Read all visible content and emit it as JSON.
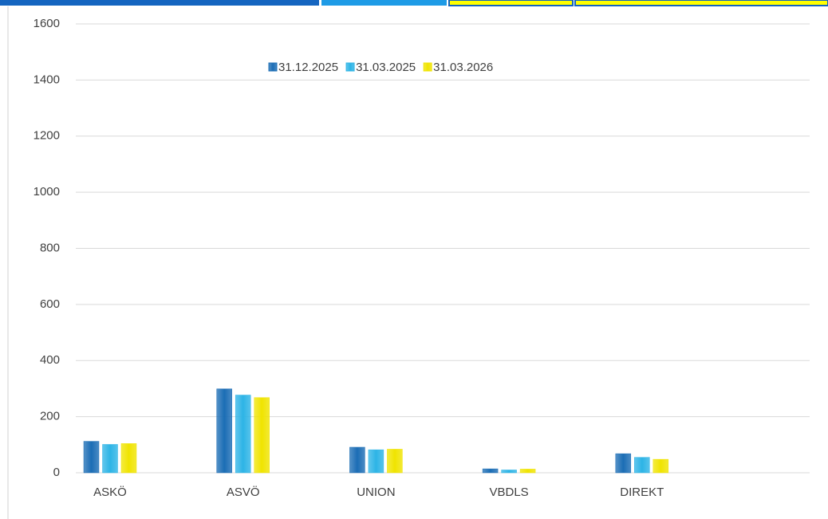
{
  "chart_data": {
    "type": "bar",
    "categories": [
      "ASKÖ",
      "ASVÖ",
      "UNION",
      "VBDLS",
      "DIREKT"
    ],
    "series": [
      {
        "name": "31.12.2025",
        "color": "#1b6db5",
        "values": [
          112,
          299,
          91,
          14,
          68
        ]
      },
      {
        "name": "31.03.2025",
        "color": "#2db4e6",
        "values": [
          101,
          277,
          82,
          10,
          55
        ]
      },
      {
        "name": "31.03.2026",
        "color": "#f0e400",
        "values": [
          104,
          268,
          84,
          13,
          48
        ]
      }
    ],
    "ylim": [
      0,
      1600
    ],
    "yticks": [
      0,
      200,
      400,
      600,
      800,
      1000,
      1200,
      1400,
      1600
    ],
    "grid": true,
    "legend": "top"
  }
}
